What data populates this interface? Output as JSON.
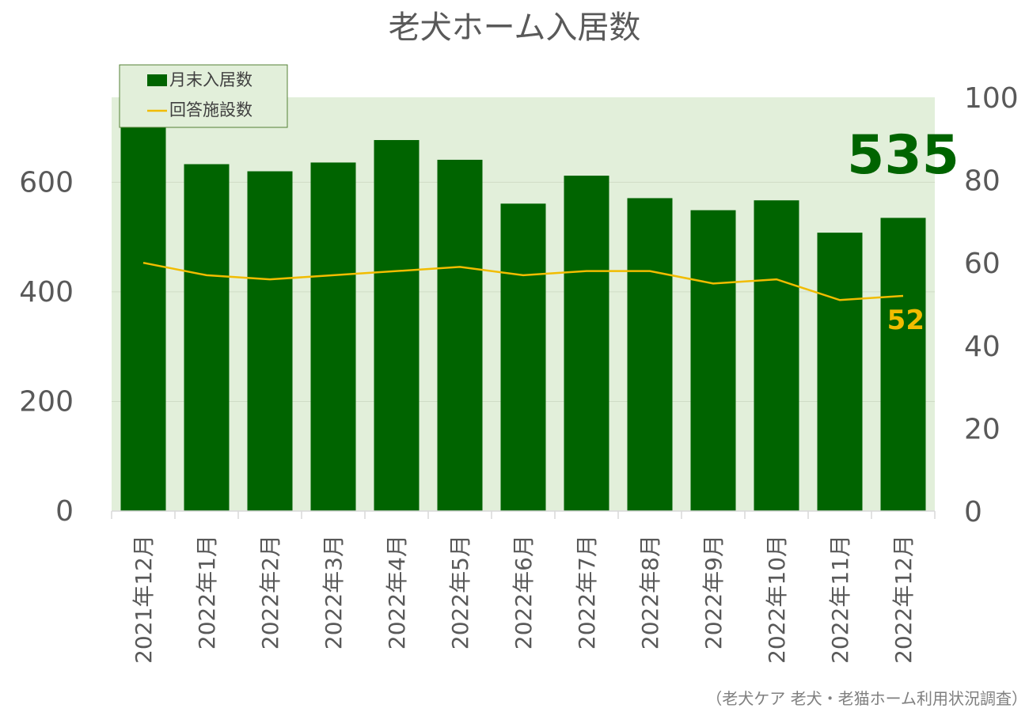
{
  "chart_data": {
    "type": "bar",
    "title": "老犬ホーム入居数",
    "categories": [
      "2021年12月",
      "2022年1月",
      "2022年2月",
      "2022年3月",
      "2022年4月",
      "2022年5月",
      "2022年6月",
      "2022年7月",
      "2022年8月",
      "2022年9月",
      "2022年10月",
      "2022年11月",
      "2022年12月"
    ],
    "series": [
      {
        "name": "月末入居数",
        "type": "bar",
        "axis": "left",
        "color": "#006400",
        "values": [
          705,
          633,
          620,
          636,
          677,
          641,
          561,
          612,
          571,
          549,
          567,
          508,
          535
        ]
      },
      {
        "name": "回答施設数",
        "type": "line",
        "axis": "right",
        "color": "#f1bc00",
        "values": [
          60,
          57,
          56,
          57,
          58,
          59,
          57,
          58,
          58,
          55,
          56,
          51,
          52
        ]
      }
    ],
    "left_axis": {
      "min": 0,
      "max": 755,
      "ticks": [
        0,
        200,
        400,
        600
      ]
    },
    "right_axis": {
      "min": 0,
      "max": 100,
      "ticks": [
        0,
        20,
        40,
        60,
        80,
        100
      ]
    },
    "annotations": {
      "last_bar_value": "535",
      "last_line_value": "52"
    },
    "legend": {
      "position": "top-left",
      "items": [
        "月末入居数",
        "回答施設数"
      ]
    },
    "source": "（老犬ケア 老犬・老猫ホーム利用状況調査）",
    "plot_background": "#e2efda",
    "grid": true
  }
}
